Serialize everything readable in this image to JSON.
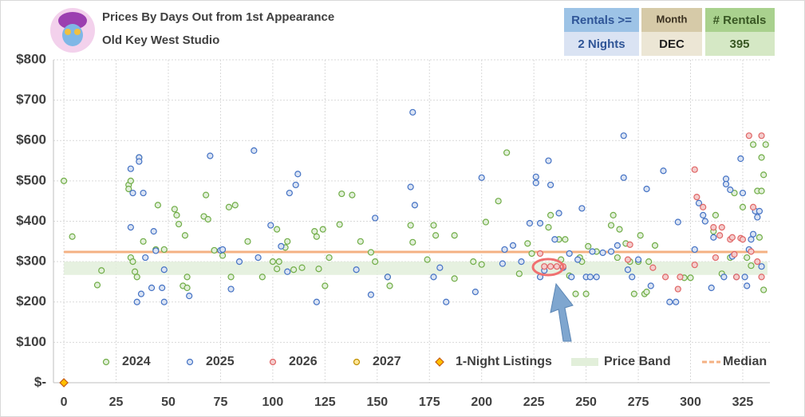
{
  "chart_data": {
    "type": "scatter",
    "title": "Prices By Days Out from 1st Appearance",
    "subtitle": "Old Key West Studio",
    "info_boxes": [
      {
        "label": "Rentals >=",
        "value": "2 Nights"
      },
      {
        "label": "Month",
        "value": "DEC"
      },
      {
        "label": "# Rentals",
        "value": 395
      }
    ],
    "xlim": [
      -5,
      338
    ],
    "xticks": [
      0,
      25,
      50,
      75,
      100,
      125,
      150,
      175,
      200,
      225,
      250,
      275,
      300,
      325
    ],
    "ylim": [
      0,
      800
    ],
    "yticks": [
      {
        "value": 0,
        "label": "$-"
      },
      {
        "value": 100,
        "label": "$100"
      },
      {
        "value": 200,
        "label": "$200"
      },
      {
        "value": 300,
        "label": "$300"
      },
      {
        "value": 400,
        "label": "$400"
      },
      {
        "value": 500,
        "label": "$500"
      },
      {
        "value": 600,
        "label": "$600"
      },
      {
        "value": 700,
        "label": "$700"
      },
      {
        "value": 800,
        "label": "$800"
      }
    ],
    "grid": true,
    "price_band": {
      "name": "Price Band",
      "low": 267,
      "high": 300,
      "color": "#e2efda"
    },
    "median": {
      "name": "Median",
      "value": 324,
      "color": "#f4b183"
    },
    "series": [
      {
        "name": "2024",
        "color": "#70ad47",
        "fill": "#e2efda",
        "x": [
          0,
          4,
          16,
          18,
          32,
          33,
          31,
          31,
          32,
          34,
          35,
          36,
          38,
          44,
          45,
          48,
          53,
          54,
          55,
          57,
          58,
          59,
          59,
          67,
          68,
          69,
          72,
          76,
          79,
          80,
          82,
          88,
          95,
          100,
          102,
          102,
          103,
          106,
          107,
          110,
          114,
          120,
          121,
          122,
          124,
          125,
          127,
          132,
          133,
          138,
          142,
          147,
          149,
          155,
          156,
          166,
          167,
          174,
          177,
          178,
          187,
          187,
          196,
          200,
          202,
          208,
          212,
          218,
          222,
          224,
          232,
          233,
          237,
          238,
          240,
          242,
          245,
          247,
          248,
          250,
          251,
          255,
          262,
          263,
          266,
          265,
          269,
          271,
          273,
          275,
          276,
          278,
          279,
          280,
          283,
          297,
          300,
          312,
          311,
          315,
          319,
          321,
          325,
          327,
          329,
          330,
          332,
          333,
          334,
          335,
          334,
          335,
          336
        ],
        "values": [
          500,
          362,
          242,
          278,
          310,
          300,
          490,
          480,
          500,
          275,
          262,
          558,
          350,
          330,
          440,
          330,
          430,
          415,
          393,
          240,
          365,
          235,
          262,
          412,
          465,
          405,
          328,
          315,
          435,
          262,
          440,
          350,
          262,
          300,
          380,
          282,
          300,
          335,
          350,
          280,
          285,
          375,
          362,
          282,
          380,
          240,
          310,
          392,
          468,
          465,
          350,
          323,
          300,
          262,
          240,
          390,
          348,
          305,
          390,
          365,
          365,
          258,
          300,
          293,
          398,
          450,
          570,
          270,
          345,
          320,
          385,
          415,
          355,
          305,
          355,
          265,
          220,
          310,
          300,
          220,
          338,
          325,
          390,
          415,
          380,
          310,
          345,
          300,
          220,
          300,
          365,
          220,
          225,
          300,
          340,
          260,
          260,
          415,
          375,
          270,
          310,
          470,
          435,
          310,
          290,
          590,
          475,
          360,
          558,
          515,
          475,
          230,
          590
        ]
      },
      {
        "name": "2025",
        "color": "#4472c4",
        "fill": "#dae3f3",
        "x": [
          32,
          32,
          33,
          35,
          36,
          36,
          37,
          38,
          39,
          42,
          43,
          44,
          47,
          48,
          48,
          60,
          70,
          75,
          76,
          80,
          84,
          91,
          93,
          99,
          104,
          107,
          108,
          111,
          112,
          121,
          140,
          147,
          149,
          155,
          166,
          167,
          168,
          177,
          180,
          183,
          197,
          200,
          210,
          211,
          215,
          219,
          223,
          226,
          226,
          228,
          228,
          230,
          232,
          233,
          235,
          237,
          239,
          242,
          243,
          246,
          248,
          250,
          252,
          253,
          255,
          258,
          262,
          265,
          268,
          268,
          270,
          272,
          275,
          279,
          281,
          287,
          290,
          293,
          294,
          302,
          304,
          306,
          307,
          310,
          311,
          316,
          317,
          317,
          319,
          320,
          322,
          324,
          325,
          326,
          327,
          328,
          329,
          330,
          331,
          332,
          333,
          334
        ],
        "values": [
          385,
          530,
          470,
          200,
          558,
          548,
          220,
          470,
          310,
          235,
          375,
          327,
          235,
          280,
          200,
          215,
          562,
          328,
          330,
          232,
          300,
          575,
          310,
          390,
          338,
          275,
          470,
          490,
          517,
          200,
          280,
          218,
          408,
          262,
          485,
          670,
          440,
          262,
          285,
          200,
          225,
          508,
          295,
          330,
          340,
          300,
          395,
          510,
          495,
          262,
          395,
          278,
          550,
          490,
          355,
          420,
          285,
          320,
          262,
          305,
          432,
          262,
          262,
          325,
          262,
          322,
          325,
          340,
          612,
          508,
          280,
          262,
          305,
          480,
          240,
          525,
          200,
          200,
          398,
          330,
          445,
          415,
          400,
          235,
          360,
          262,
          505,
          492,
          478,
          313,
          262,
          555,
          470,
          262,
          240,
          330,
          355,
          368,
          425,
          410,
          425,
          288
        ]
      },
      {
        "name": "2026",
        "color": "#e06666",
        "fill": "#f4cccc",
        "x": [
          228,
          230,
          233,
          236,
          239,
          270,
          271,
          282,
          288,
          294,
          295,
          302,
          303,
          302,
          306,
          311,
          312,
          314,
          315,
          319,
          320,
          321,
          322,
          324,
          325,
          328,
          329,
          330,
          332,
          334,
          334
        ],
        "values": [
          320,
          288,
          288,
          288,
          288,
          305,
          342,
          285,
          262,
          232,
          262,
          528,
          460,
          292,
          435,
          385,
          310,
          365,
          385,
          355,
          360,
          318,
          262,
          358,
          355,
          612,
          325,
          435,
          300,
          612,
          262
        ]
      },
      {
        "name": "2027",
        "color": "#bf9000",
        "fill": "#ffe699",
        "x": [],
        "values": []
      },
      {
        "name": "1-Night Listings",
        "color": "#c55a11",
        "fill": "#ffc000",
        "marker": "diamond",
        "x": [
          0
        ],
        "values": [
          0
        ]
      }
    ]
  }
}
